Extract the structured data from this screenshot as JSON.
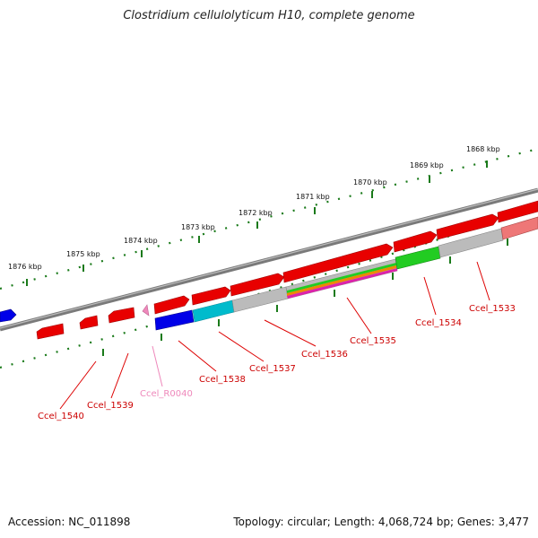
{
  "title": "Clostridium cellulolyticum H10, complete genome",
  "footer": {
    "accession": "Accession: NC_011898",
    "summary": "Topology: circular; Length: 4,068,724 bp; Genes: 3,477"
  },
  "ruler_labels": [
    "1876 kbp",
    "1875 kbp",
    "1874 kbp",
    "1873 kbp",
    "1872 kbp",
    "1871 kbp",
    "1870 kbp",
    "1869 kbp",
    "1868 kbp"
  ],
  "genes": [
    {
      "name": "Ccel_1540",
      "color": "#cc0000"
    },
    {
      "name": "Ccel_1539",
      "color": "#cc0000"
    },
    {
      "name": "Ccel_R0040",
      "color": "#ee88bb"
    },
    {
      "name": "Ccel_1538",
      "color": "#cc0000"
    },
    {
      "name": "Ccel_1537",
      "color": "#cc0000"
    },
    {
      "name": "Ccel_1536",
      "color": "#cc0000"
    },
    {
      "name": "Ccel_1535",
      "color": "#cc0000"
    },
    {
      "name": "Ccel_1534",
      "color": "#cc0000"
    },
    {
      "name": "Ccel_1533",
      "color": "#cc0000"
    }
  ],
  "colors": {
    "cds_forward": "#ee0000",
    "cds_reverse_blue": "#0000ee",
    "cds_cyan": "#00bbcc",
    "cds_gray": "#bbbbbb",
    "cds_green": "#22cc22",
    "rna_pink": "#ee88bb",
    "backbone": "#808080",
    "ruler": "#1a7a1a"
  }
}
